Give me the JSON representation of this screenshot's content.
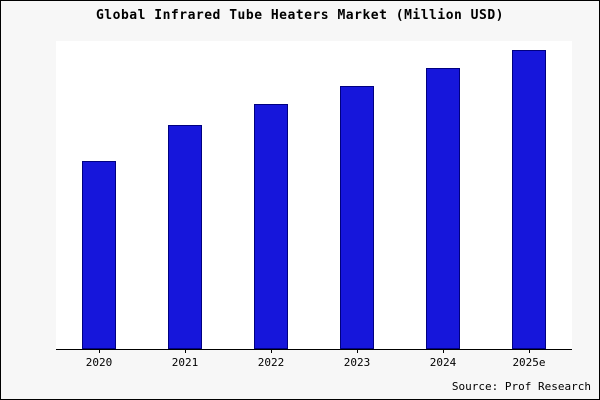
{
  "chart_data": {
    "type": "bar",
    "title": "Global Infrared Tube Heaters Market (Million USD)",
    "categories": [
      "2020",
      "2021",
      "2022",
      "2023",
      "2024",
      "2025e"
    ],
    "values": [
      63,
      75,
      82,
      88,
      94,
      100
    ],
    "xlabel": "",
    "ylabel": "",
    "ylim": [
      0,
      103
    ],
    "grid": false,
    "legend": false,
    "bar_color": "#1616db",
    "bar_edge_color": "#000080",
    "plot_background": "#ffffff",
    "canvas_background": "#f7f7f7"
  },
  "source_note": "Source: Prof Research"
}
